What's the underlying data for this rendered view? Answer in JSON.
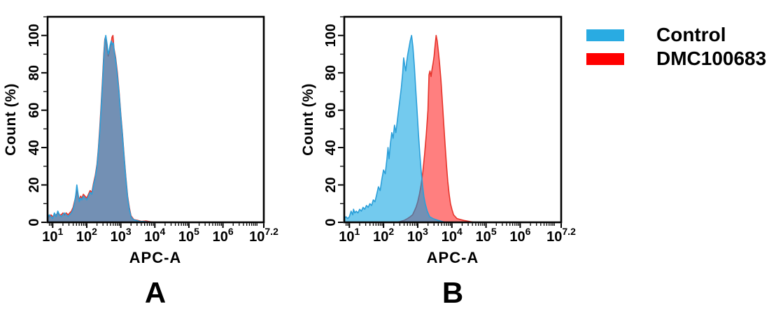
{
  "figure": {
    "background": "#ffffff"
  },
  "legend": {
    "items": [
      {
        "label": "Control",
        "color": "#29ABE2"
      },
      {
        "label": "DMC100683",
        "color": "#FF0000"
      }
    ]
  },
  "panels": [
    {
      "letter": "A",
      "xlabel": "APC-A",
      "ylabel": "Count (%)"
    },
    {
      "letter": "B",
      "xlabel": "APC-A",
      "ylabel": "Count (%)"
    }
  ],
  "chart_data": [
    {
      "type": "area",
      "panel": "A",
      "title": "",
      "xlabel": "APC-A",
      "ylabel": "Count (%)",
      "x_scale": "log10",
      "x_range_log10": [
        0.85,
        7.2
      ],
      "x_ticks": [
        {
          "log10": 1,
          "base": "10",
          "exp": "1"
        },
        {
          "log10": 2,
          "base": "10",
          "exp": "2"
        },
        {
          "log10": 3,
          "base": "10",
          "exp": "3"
        },
        {
          "log10": 4,
          "base": "10",
          "exp": "4"
        },
        {
          "log10": 5,
          "base": "10",
          "exp": "5"
        },
        {
          "log10": 6,
          "base": "10",
          "exp": "6"
        },
        {
          "log10": 7.2,
          "base": "10",
          "exp": "7.2"
        }
      ],
      "x_minor_ticks": "log10 sub-decade positions (2-9 per decade)",
      "ylim": [
        0,
        110
      ],
      "y_major_ticks": [
        0,
        20,
        40,
        60,
        80,
        100
      ],
      "y_minor_ticks": [
        10,
        30,
        50,
        70,
        90,
        110
      ],
      "grid": false,
      "legend_position": "outside-right",
      "series": [
        {
          "name": "Control",
          "line_color": "#2B9FD9",
          "fill_color": "rgba(0,158,224,0.55)",
          "points_log10x_pct": [
            [
              0.85,
              2
            ],
            [
              0.9,
              4
            ],
            [
              0.95,
              3
            ],
            [
              1.0,
              2
            ],
            [
              1.05,
              5
            ],
            [
              1.1,
              3
            ],
            [
              1.15,
              6
            ],
            [
              1.2,
              4
            ],
            [
              1.25,
              3
            ],
            [
              1.3,
              4
            ],
            [
              1.35,
              5
            ],
            [
              1.4,
              4
            ],
            [
              1.45,
              3
            ],
            [
              1.5,
              4
            ],
            [
              1.55,
              5
            ],
            [
              1.6,
              7
            ],
            [
              1.64,
              10
            ],
            [
              1.68,
              15
            ],
            [
              1.71,
              20
            ],
            [
              1.74,
              16
            ],
            [
              1.78,
              11
            ],
            [
              1.82,
              13
            ],
            [
              1.86,
              12
            ],
            [
              1.9,
              14
            ],
            [
              1.95,
              13
            ],
            [
              2.0,
              12
            ],
            [
              2.05,
              14
            ],
            [
              2.1,
              16
            ],
            [
              2.15,
              15
            ],
            [
              2.2,
              20
            ],
            [
              2.25,
              24
            ],
            [
              2.3,
              30
            ],
            [
              2.34,
              38
            ],
            [
              2.38,
              48
            ],
            [
              2.42,
              60
            ],
            [
              2.46,
              73
            ],
            [
              2.5,
              88
            ],
            [
              2.53,
              97
            ],
            [
              2.56,
              100
            ],
            [
              2.6,
              95
            ],
            [
              2.63,
              90
            ],
            [
              2.66,
              92
            ],
            [
              2.69,
              95
            ],
            [
              2.72,
              97
            ],
            [
              2.75,
              95
            ],
            [
              2.78,
              96
            ],
            [
              2.81,
              91
            ],
            [
              2.85,
              87
            ],
            [
              2.9,
              78
            ],
            [
              2.95,
              69
            ],
            [
              3.0,
              57
            ],
            [
              3.05,
              46
            ],
            [
              3.1,
              34
            ],
            [
              3.15,
              23
            ],
            [
              3.2,
              13
            ],
            [
              3.25,
              7
            ],
            [
              3.3,
              3
            ],
            [
              3.36,
              1.5
            ],
            [
              3.45,
              1
            ],
            [
              3.55,
              0.5
            ],
            [
              3.7,
              0.4
            ],
            [
              3.85,
              0.2
            ],
            [
              4.0,
              0
            ]
          ]
        },
        {
          "name": "DMC100683",
          "line_color": "#E6332A",
          "fill_color": "rgba(255,0,0,0.5)",
          "points_log10x_pct": [
            [
              0.85,
              3
            ],
            [
              0.9,
              3
            ],
            [
              0.95,
              4
            ],
            [
              1.0,
              3
            ],
            [
              1.05,
              4
            ],
            [
              1.1,
              4
            ],
            [
              1.15,
              5
            ],
            [
              1.2,
              4
            ],
            [
              1.25,
              4
            ],
            [
              1.3,
              5
            ],
            [
              1.35,
              4
            ],
            [
              1.4,
              5
            ],
            [
              1.45,
              4
            ],
            [
              1.5,
              5
            ],
            [
              1.55,
              6
            ],
            [
              1.6,
              8
            ],
            [
              1.64,
              11
            ],
            [
              1.68,
              14
            ],
            [
              1.71,
              17
            ],
            [
              1.74,
              15
            ],
            [
              1.78,
              12
            ],
            [
              1.82,
              14
            ],
            [
              1.86,
              13
            ],
            [
              1.9,
              15
            ],
            [
              1.95,
              14
            ],
            [
              2.0,
              13
            ],
            [
              2.05,
              15
            ],
            [
              2.1,
              17
            ],
            [
              2.15,
              16
            ],
            [
              2.2,
              21
            ],
            [
              2.25,
              25
            ],
            [
              2.3,
              31
            ],
            [
              2.34,
              39
            ],
            [
              2.38,
              50
            ],
            [
              2.42,
              62
            ],
            [
              2.46,
              75
            ],
            [
              2.5,
              90
            ],
            [
              2.53,
              98
            ],
            [
              2.55,
              99
            ],
            [
              2.59,
              94
            ],
            [
              2.63,
              89
            ],
            [
              2.66,
              91
            ],
            [
              2.69,
              94
            ],
            [
              2.72,
              96
            ],
            [
              2.74,
              99
            ],
            [
              2.77,
              100
            ],
            [
              2.8,
              93
            ],
            [
              2.85,
              88
            ],
            [
              2.9,
              80
            ],
            [
              2.95,
              70
            ],
            [
              3.0,
              58
            ],
            [
              3.05,
              47
            ],
            [
              3.1,
              35
            ],
            [
              3.15,
              24
            ],
            [
              3.2,
              14
            ],
            [
              3.25,
              8
            ],
            [
              3.3,
              3.5
            ],
            [
              3.38,
              1.5
            ],
            [
              3.5,
              1
            ],
            [
              3.6,
              0.5
            ],
            [
              3.75,
              0.7
            ],
            [
              3.9,
              0.2
            ],
            [
              4.05,
              0
            ]
          ]
        }
      ]
    },
    {
      "type": "area",
      "panel": "B",
      "title": "",
      "xlabel": "APC-A",
      "ylabel": "Count (%)",
      "x_scale": "log10",
      "x_range_log10": [
        0.85,
        7.2
      ],
      "x_ticks": [
        {
          "log10": 1,
          "base": "10",
          "exp": "1"
        },
        {
          "log10": 2,
          "base": "10",
          "exp": "2"
        },
        {
          "log10": 3,
          "base": "10",
          "exp": "3"
        },
        {
          "log10": 4,
          "base": "10",
          "exp": "4"
        },
        {
          "log10": 5,
          "base": "10",
          "exp": "5"
        },
        {
          "log10": 6,
          "base": "10",
          "exp": "6"
        },
        {
          "log10": 7.2,
          "base": "10",
          "exp": "7.2"
        }
      ],
      "x_minor_ticks": "log10 sub-decade positions (2-9 per decade)",
      "ylim": [
        0,
        110
      ],
      "y_major_ticks": [
        0,
        20,
        40,
        60,
        80,
        100
      ],
      "y_minor_ticks": [
        10,
        30,
        50,
        70,
        90,
        110
      ],
      "grid": false,
      "legend_position": "outside-right",
      "series": [
        {
          "name": "Control",
          "line_color": "#2B9FD9",
          "fill_color": "rgba(0,158,224,0.55)",
          "points_log10x_pct": [
            [
              0.85,
              2
            ],
            [
              0.9,
              3
            ],
            [
              0.95,
              2
            ],
            [
              1.0,
              3
            ],
            [
              1.05,
              6
            ],
            [
              1.1,
              4
            ],
            [
              1.12,
              7
            ],
            [
              1.16,
              5
            ],
            [
              1.2,
              6
            ],
            [
              1.25,
              5
            ],
            [
              1.3,
              7
            ],
            [
              1.35,
              6
            ],
            [
              1.4,
              8
            ],
            [
              1.45,
              7
            ],
            [
              1.5,
              9
            ],
            [
              1.55,
              8
            ],
            [
              1.6,
              10
            ],
            [
              1.65,
              9
            ],
            [
              1.7,
              12
            ],
            [
              1.75,
              11
            ],
            [
              1.8,
              15
            ],
            [
              1.85,
              19
            ],
            [
              1.9,
              17
            ],
            [
              1.95,
              23
            ],
            [
              2.0,
              28
            ],
            [
              2.05,
              26
            ],
            [
              2.1,
              34
            ],
            [
              2.13,
              40
            ],
            [
              2.16,
              34
            ],
            [
              2.2,
              42
            ],
            [
              2.24,
              48
            ],
            [
              2.28,
              45
            ],
            [
              2.32,
              52
            ],
            [
              2.36,
              48
            ],
            [
              2.4,
              54
            ],
            [
              2.44,
              60
            ],
            [
              2.48,
              66
            ],
            [
              2.52,
              72
            ],
            [
              2.56,
              80
            ],
            [
              2.59,
              88
            ],
            [
              2.62,
              84
            ],
            [
              2.65,
              81
            ],
            [
              2.68,
              86
            ],
            [
              2.71,
              90
            ],
            [
              2.74,
              93
            ],
            [
              2.78,
              97
            ],
            [
              2.82,
              100
            ],
            [
              2.86,
              94
            ],
            [
              2.9,
              84
            ],
            [
              2.94,
              72
            ],
            [
              2.98,
              60
            ],
            [
              3.02,
              48
            ],
            [
              3.06,
              37
            ],
            [
              3.1,
              28
            ],
            [
              3.14,
              20
            ],
            [
              3.18,
              14
            ],
            [
              3.22,
              10
            ],
            [
              3.28,
              6
            ],
            [
              3.35,
              3
            ],
            [
              3.45,
              2
            ],
            [
              3.6,
              1
            ],
            [
              3.8,
              0
            ]
          ]
        },
        {
          "name": "DMC100683",
          "line_color": "#E6332A",
          "fill_color": "rgba(255,0,0,0.5)",
          "points_log10x_pct": [
            [
              2.4,
              0
            ],
            [
              2.5,
              0.5
            ],
            [
              2.6,
              1
            ],
            [
              2.7,
              2
            ],
            [
              2.78,
              3
            ],
            [
              2.85,
              4
            ],
            [
              2.9,
              6
            ],
            [
              2.95,
              8
            ],
            [
              3.0,
              11
            ],
            [
              3.05,
              15
            ],
            [
              3.1,
              20
            ],
            [
              3.15,
              27
            ],
            [
              3.2,
              36
            ],
            [
              3.25,
              47
            ],
            [
              3.3,
              60
            ],
            [
              3.33,
              79
            ],
            [
              3.36,
              81
            ],
            [
              3.39,
              78
            ],
            [
              3.42,
              82
            ],
            [
              3.45,
              85
            ],
            [
              3.48,
              89
            ],
            [
              3.51,
              95
            ],
            [
              3.54,
              100
            ],
            [
              3.57,
              97
            ],
            [
              3.6,
              92
            ],
            [
              3.64,
              85
            ],
            [
              3.68,
              76
            ],
            [
              3.72,
              65
            ],
            [
              3.76,
              53
            ],
            [
              3.8,
              42
            ],
            [
              3.84,
              31
            ],
            [
              3.88,
              22
            ],
            [
              3.92,
              15
            ],
            [
              3.96,
              10
            ],
            [
              4.0,
              7
            ],
            [
              4.05,
              4
            ],
            [
              4.1,
              3
            ],
            [
              4.15,
              2
            ],
            [
              4.25,
              1.5
            ],
            [
              4.35,
              1
            ],
            [
              4.5,
              0.5
            ],
            [
              4.65,
              0
            ]
          ]
        }
      ]
    }
  ]
}
